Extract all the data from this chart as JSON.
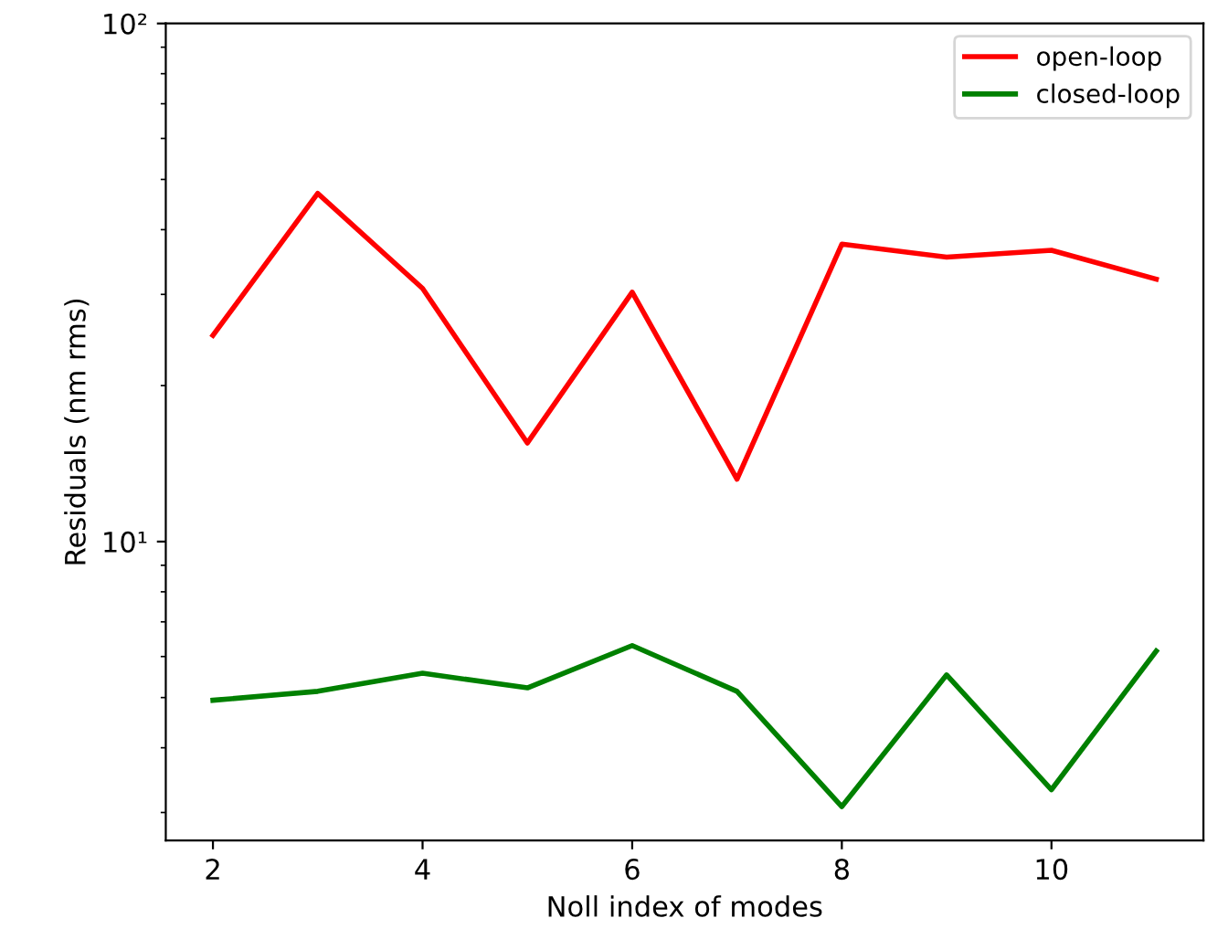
{
  "chart_data": {
    "type": "line",
    "xlabel": "Noll index of modes",
    "ylabel": "Residuals (nm rms)",
    "x": [
      2,
      3,
      4,
      5,
      6,
      7,
      8,
      9,
      10,
      11
    ],
    "series": [
      {
        "name": "open-loop",
        "color": "#ff0000",
        "values": [
          25,
          47,
          30.8,
          15.5,
          30.3,
          13.2,
          37.5,
          35.4,
          36.5,
          32.1
        ]
      },
      {
        "name": "closed-loop",
        "color": "#008000",
        "values": [
          4.94,
          5.14,
          5.57,
          5.22,
          6.3,
          5.14,
          3.08,
          5.53,
          3.32,
          6.15
        ]
      }
    ],
    "log": "y",
    "xlim": [
      1.55,
      11.45
    ],
    "ylim": [
      2.65,
      100
    ],
    "xticks": [
      2,
      4,
      6,
      8,
      10
    ],
    "yticks": [
      {
        "value": 10,
        "label": "10¹"
      },
      {
        "value": 100,
        "label": "10²"
      }
    ],
    "grid": false,
    "legend": "top right",
    "marker": "none",
    "line_style": "solid"
  }
}
